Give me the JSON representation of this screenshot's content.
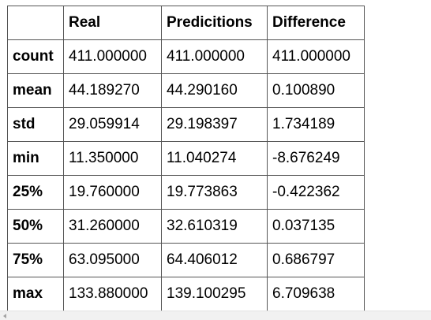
{
  "table": {
    "columns": [
      "",
      "Real",
      "Predicitions",
      "Difference"
    ],
    "rows": [
      {
        "label": "count",
        "values": [
          "411.000000",
          "411.000000",
          "411.000000"
        ]
      },
      {
        "label": "mean",
        "values": [
          "44.189270",
          "44.290160",
          "0.100890"
        ]
      },
      {
        "label": "std",
        "values": [
          "29.059914",
          "29.198397",
          "1.734189"
        ]
      },
      {
        "label": "min",
        "values": [
          "11.350000",
          "11.040274",
          "-8.676249"
        ]
      },
      {
        "label": "25%",
        "values": [
          "19.760000",
          "19.773863",
          "-0.422362"
        ]
      },
      {
        "label": "50%",
        "values": [
          "31.260000",
          "32.610319",
          "0.037135"
        ]
      },
      {
        "label": "75%",
        "values": [
          "63.095000",
          "64.406012",
          "0.686797"
        ]
      },
      {
        "label": "max",
        "values": [
          "133.880000",
          "139.100295",
          "6.709638"
        ]
      }
    ]
  },
  "scrollbar": {
    "left_arrow_icon": "triangle-left"
  }
}
